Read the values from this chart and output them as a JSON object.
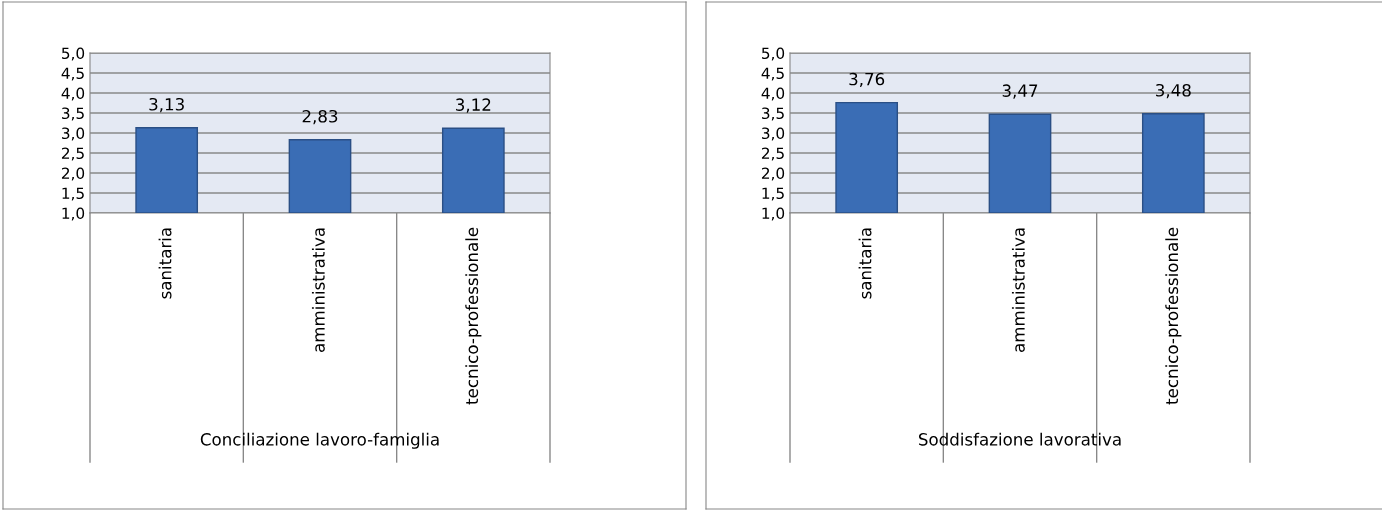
{
  "chart_data": [
    {
      "type": "bar",
      "categories": [
        "sanitaria",
        "amministrativa",
        "tecnico-professionale"
      ],
      "values": [
        3.13,
        2.83,
        3.12
      ],
      "value_labels": [
        "3,13",
        "2,83",
        "3,12"
      ],
      "color": "#3a6db5",
      "xlabel": "Conciliazione lavoro-famiglia",
      "ylim": [
        1,
        5
      ],
      "yticks": [
        {
          "value": 1,
          "label": "1,0"
        },
        {
          "value": 1.5,
          "label": "1,5"
        },
        {
          "value": 2,
          "label": "2,0"
        },
        {
          "value": 2.5,
          "label": "2,5"
        },
        {
          "value": 3,
          "label": "3,0"
        },
        {
          "value": 3.5,
          "label": "3,5"
        },
        {
          "value": 4,
          "label": "4,0"
        },
        {
          "value": 4.5,
          "label": "4,5"
        },
        {
          "value": 5,
          "label": "5,0"
        }
      ],
      "grid": "y"
    },
    {
      "type": "bar",
      "categories": [
        "sanitaria",
        "amministrativa",
        "tecnico-professionale"
      ],
      "values": [
        3.76,
        3.47,
        3.48
      ],
      "value_labels": [
        "3,76",
        "3,47",
        "3,48"
      ],
      "color": "#3a6db5",
      "xlabel": "Soddisfazione lavorativa",
      "ylim": [
        1,
        5
      ],
      "yticks": [
        {
          "value": 1,
          "label": "1,0"
        },
        {
          "value": 1.5,
          "label": "1,5"
        },
        {
          "value": 2,
          "label": "2,0"
        },
        {
          "value": 2.5,
          "label": "2,5"
        },
        {
          "value": 3,
          "label": "3,0"
        },
        {
          "value": 3.5,
          "label": "3,5"
        },
        {
          "value": 4,
          "label": "4,0"
        },
        {
          "value": 4.5,
          "label": "4,5"
        },
        {
          "value": 5,
          "label": "5,0"
        }
      ],
      "grid": "y"
    }
  ]
}
